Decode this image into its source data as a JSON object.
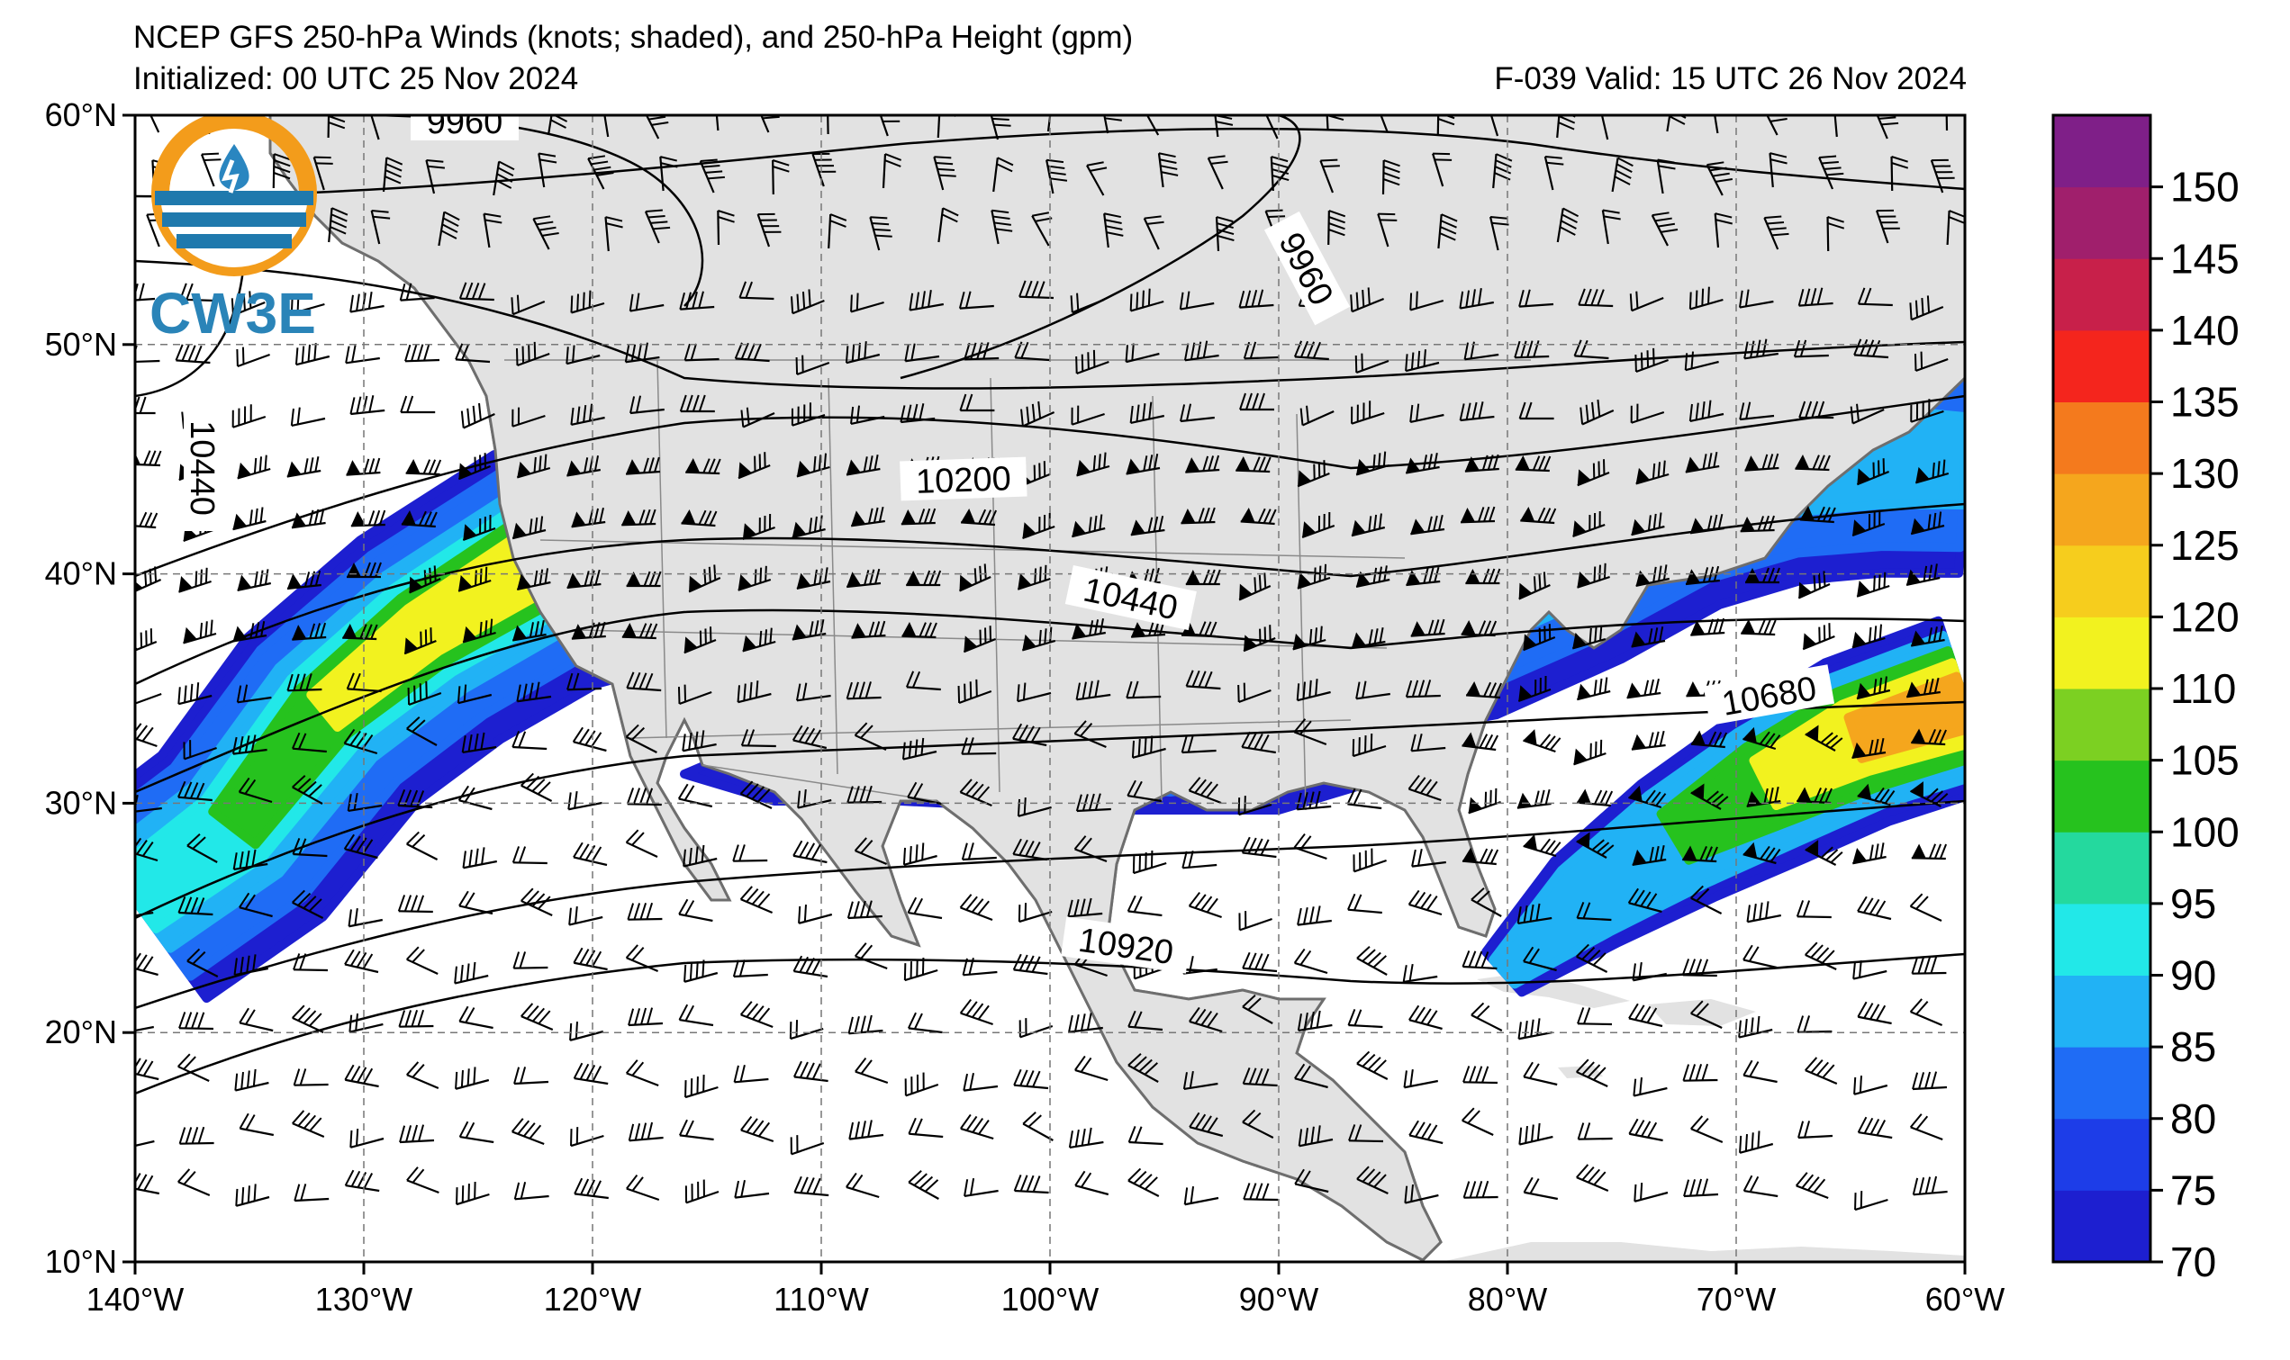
{
  "title_line1": "NCEP GFS 250-hPa Winds (knots; shaded), and 250-hPa Height (gpm)",
  "title_line2": "Initialized: 00 UTC 25 Nov 2024",
  "title_right": "F-039  Valid: 15 UTC 26 Nov 2024",
  "logo_text": "CW3E",
  "map": {
    "lon_range": [
      -140,
      -60
    ],
    "lat_range": [
      10,
      60
    ],
    "lon_ticks": [
      "140°W",
      "130°W",
      "120°W",
      "110°W",
      "100°W",
      "90°W",
      "80°W",
      "70°W",
      "60°W"
    ],
    "lat_ticks": [
      "60°N",
      "50°N",
      "40°N",
      "30°N",
      "20°N",
      "10°N"
    ],
    "gridlines": "dashed",
    "land_color": "#e2e2e2",
    "ocean_color": "#ffffff",
    "coast_color": "#6e6e6e"
  },
  "contour_labels": [
    "9960",
    "9960",
    "10440",
    "10200",
    "10440",
    "10680",
    "10920"
  ],
  "colorbar": {
    "ticks": [
      "70",
      "75",
      "80",
      "85",
      "90",
      "95",
      "100",
      "105",
      "110",
      "120",
      "125",
      "130",
      "135",
      "140",
      "145",
      "150"
    ],
    "colors": [
      "#1d1fd0",
      "#1d3de8",
      "#1f6cf5",
      "#21b2f5",
      "#22e8e8",
      "#24d99e",
      "#26c21e",
      "#7cd022",
      "#f2f21f",
      "#f6cd1d",
      "#f5a61d",
      "#f47a1d",
      "#f4251d",
      "#c8204a",
      "#a01f6c",
      "#7f1f88"
    ]
  }
}
